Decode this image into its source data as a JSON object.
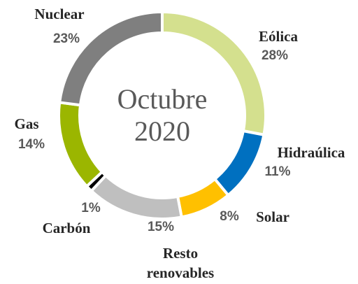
{
  "chart_data": {
    "type": "donut",
    "center_text": [
      "Octubre",
      "2020"
    ],
    "categories": [
      "Eólica",
      "Hidraúlica",
      "Solar",
      "Resto renovables",
      "Carbón",
      "Gas",
      "Nuclear"
    ],
    "values": [
      28,
      11,
      8,
      15,
      1,
      14,
      23
    ],
    "value_labels": [
      "28%",
      "11%",
      "8%",
      "15%",
      "1%",
      "14%",
      "23%"
    ],
    "colors": [
      "#d4e08e",
      "#0070c0",
      "#ffc000",
      "#bfbfbf",
      "#000000",
      "#9bb600",
      "#7f7f7f"
    ]
  }
}
